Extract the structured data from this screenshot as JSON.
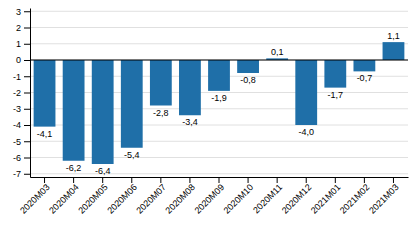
{
  "chart_data": {
    "type": "bar",
    "categories": [
      "2020M03",
      "2020M04",
      "2020M05",
      "2020M06",
      "2020M07",
      "2020M08",
      "2020M09",
      "2020M10",
      "2020M11",
      "2020M12",
      "2021M01",
      "2021M02",
      "2021M03"
    ],
    "values": [
      -4.1,
      -6.2,
      -6.4,
      -5.4,
      -2.8,
      -3.4,
      -1.9,
      -0.8,
      0.1,
      -4.0,
      -1.7,
      -0.7,
      1.1
    ],
    "value_labels": [
      "-4,1",
      "-6,2",
      "-6,4",
      "-5,4",
      "-2,8",
      "-3,4",
      "-1,9",
      "-0,8",
      "0,1",
      "-4,0",
      "-1,7",
      "-0,7",
      "1,1"
    ],
    "data_labels": true,
    "color": "#1F6FA8",
    "ylim": [
      -7.2,
      3.2
    ],
    "yticks": [
      -7,
      -6,
      -5,
      -4,
      -3,
      -2,
      -1,
      0,
      1,
      2,
      3
    ],
    "grid": true
  }
}
